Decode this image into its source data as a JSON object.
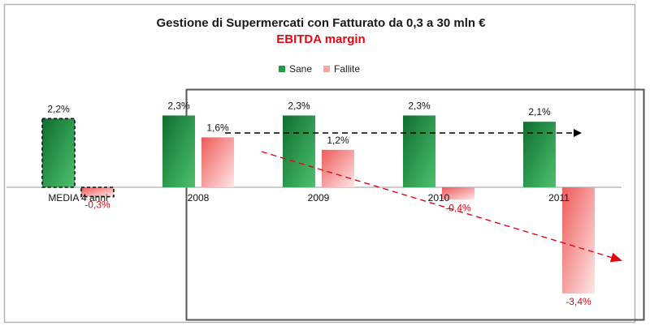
{
  "header": {
    "title": "Gestione di Supermercati con Fatturato da 0,3 a 30 mln €",
    "subtitle": "EBITDA margin"
  },
  "colors": {
    "sane": "#1e9a48",
    "fallite": "#f8b4b4",
    "subtitle": "#e30613",
    "neg_label": "#e30613"
  },
  "chart_data": {
    "type": "bar",
    "title": "Gestione di Supermercati con Fatturato da 0,3 a 30 mln €",
    "subtitle": "EBITDA margin",
    "categories": [
      "MEDIA 4 anni",
      "2008",
      "2009",
      "2010",
      "2011"
    ],
    "series": [
      {
        "name": "Sane",
        "values": [
          2.2,
          2.3,
          2.3,
          2.3,
          2.1
        ],
        "labels": [
          "2,2%",
          "2,3%",
          "2,3%",
          "2,3%",
          "2,1%"
        ]
      },
      {
        "name": "Fallite",
        "values": [
          -0.3,
          1.6,
          1.2,
          -0.4,
          -3.4
        ],
        "labels": [
          "-0,3%",
          "1,6%",
          "1,2%",
          "-0,4%",
          "-3,4%"
        ]
      }
    ],
    "ylim": [
      -3.9,
      2.9
    ],
    "grid": false,
    "legend": "top-center",
    "annotations": [
      "dashed black trend arrow (stable)",
      "dashed red trend arrow (declining)"
    ]
  }
}
